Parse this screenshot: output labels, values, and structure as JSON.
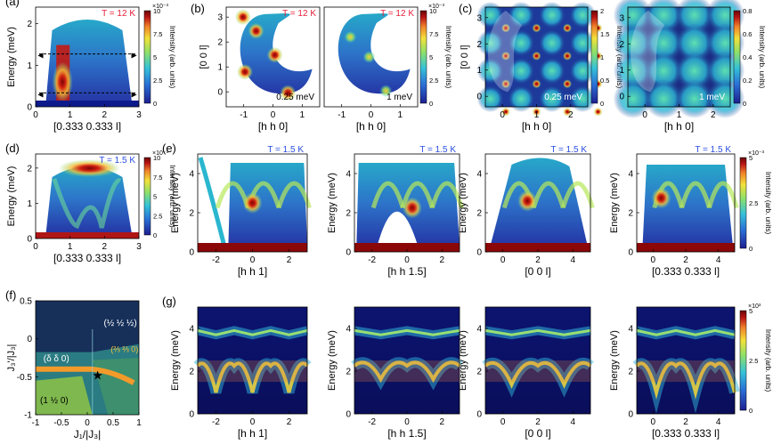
{
  "chart_data": [
    {
      "id": "a",
      "type": "heatmap",
      "panel_label": "(a)",
      "temperature": "T = 12 K",
      "xlabel": "[0.333 0.333 l]",
      "ylabel": "Energy (meV)",
      "xlim": [
        0,
        3
      ],
      "ylim": [
        0,
        2.4
      ],
      "xticks": [
        "0",
        "1",
        "2",
        "3"
      ],
      "yticks": [
        "0",
        "1",
        "2"
      ],
      "colorbar": {
        "label": "Intensity (arb. units)",
        "exponent": "×10⁻³",
        "ticks": [
          "0",
          "2.5",
          "5",
          "7.5",
          "10"
        ],
        "range": [
          0,
          10
        ]
      }
    },
    {
      "id": "b1",
      "type": "heatmap",
      "panel_label": "(b)",
      "temperature": "T = 12 K",
      "energy": "0.25 meV",
      "xlabel": "[h h 0]",
      "ylabel": "[0 0 l]",
      "xlim": [
        -1.6,
        1.6
      ],
      "ylim": [
        -0.6,
        3.4
      ],
      "xticks": [
        "-1",
        "0",
        "1"
      ],
      "yticks": [
        "0",
        "1",
        "2",
        "3"
      ]
    },
    {
      "id": "b2",
      "type": "heatmap",
      "temperature": "T = 12 K",
      "energy": "1 meV",
      "xlabel": "[h h 0]",
      "xticks": [
        "-1",
        "0",
        "1"
      ],
      "colorbar": {
        "label": "Intensity (arb. units)",
        "exponent": "×10⁻³",
        "ticks": [
          "0",
          "2.5",
          "5",
          "7.5",
          "10"
        ],
        "range": [
          0,
          10
        ]
      }
    },
    {
      "id": "c1",
      "type": "heatmap",
      "panel_label": "(c)",
      "energy": "0.25 meV",
      "xlabel": "[h h 0]",
      "ylabel": "[0 0 l]",
      "xticks": [
        "0",
        "1",
        "2"
      ],
      "yticks": [
        "0",
        "1",
        "2",
        "3"
      ],
      "colorbar": {
        "label": "Intensity (arb. units)",
        "ticks": [
          "0",
          "0.5",
          "1",
          "1.5",
          "2"
        ],
        "range": [
          0,
          2
        ]
      }
    },
    {
      "id": "c2",
      "type": "heatmap",
      "energy": "1 meV",
      "xlabel": "[h h 0]",
      "xticks": [
        "0",
        "1",
        "2"
      ],
      "yticks": [
        "0",
        "1",
        "2",
        "3"
      ],
      "colorbar": {
        "label": "Intensity (arb. units)",
        "ticks": [
          "0",
          "0.2",
          "0.4",
          "0.6",
          "0.8"
        ],
        "range": [
          0,
          0.8
        ]
      }
    },
    {
      "id": "d",
      "type": "heatmap",
      "panel_label": "(d)",
      "temperature": "T = 1.5 K",
      "xlabel": "[0.333 0.333 l]",
      "ylabel": "Energy (meV)",
      "xlim": [
        0,
        3
      ],
      "ylim": [
        0,
        2.4
      ],
      "xticks": [
        "0",
        "1",
        "2",
        "3"
      ],
      "yticks": [
        "0",
        "1",
        "2"
      ],
      "colorbar": {
        "label": "Intensity (arb. units)",
        "exponent": "×10⁻³",
        "ticks": [
          "0",
          "2.5",
          "5",
          "7.5",
          "10"
        ],
        "range": [
          0,
          10
        ]
      }
    },
    {
      "id": "e1",
      "type": "heatmap",
      "panel_label": "(e)",
      "temperature": "T = 1.5 K",
      "xlabel": "[h h 1]",
      "ylabel": "Energy (meV)",
      "xlim": [
        -3,
        3
      ],
      "ylim": [
        0,
        5
      ],
      "xticks": [
        "-2",
        "0",
        "2"
      ],
      "yticks": [
        "0",
        "2",
        "4"
      ]
    },
    {
      "id": "e2",
      "type": "heatmap",
      "temperature": "T = 1.5 K",
      "xlabel": "[h h 1.5]",
      "ylabel": "Energy (meV)",
      "xlim": [
        -3,
        3
      ],
      "ylim": [
        0,
        5
      ],
      "xticks": [
        "-2",
        "0",
        "2"
      ],
      "yticks": [
        "0",
        "2",
        "4"
      ]
    },
    {
      "id": "e3",
      "type": "heatmap",
      "temperature": "T = 1.5 K",
      "xlabel": "[0 0 l]",
      "ylabel": "Energy (meV)",
      "xlim": [
        -1,
        5
      ],
      "ylim": [
        0,
        5
      ],
      "xticks": [
        "0",
        "2",
        "4"
      ],
      "yticks": [
        "0",
        "2",
        "4"
      ]
    },
    {
      "id": "e4",
      "type": "heatmap",
      "temperature": "T = 1.5 K",
      "xlabel": "[0.333 0.333 l]",
      "ylabel": "Energy (meV)",
      "xlim": [
        -1,
        5
      ],
      "ylim": [
        0,
        5
      ],
      "xticks": [
        "0",
        "2",
        "4"
      ],
      "yticks": [
        "0",
        "2",
        "4"
      ],
      "colorbar": {
        "label": "Intensity (arb. units)",
        "exponent": "×10⁻³",
        "ticks": [
          "0",
          "2.5",
          "5"
        ],
        "range": [
          0,
          5
        ]
      }
    },
    {
      "id": "f",
      "type": "phase_diagram",
      "panel_label": "(f)",
      "xlabel": "J₁/|J₃|",
      "ylabel": "J₃'/|J₃|",
      "xlim": [
        -1,
        1
      ],
      "ylim": [
        -1,
        0.5
      ],
      "xticks": [
        "-1",
        "-0.5",
        "0",
        "0.5",
        "1"
      ],
      "yticks": [
        "-1",
        "-0.5",
        "0",
        "0.5"
      ],
      "regions": [
        {
          "label": "(½ ½ ½)",
          "color": "#17305a"
        },
        {
          "label": "(δ δ 0)",
          "color": "#2a7b82"
        },
        {
          "label": "(⅔ ⅔ 0)",
          "color": "#3d8f6d"
        },
        {
          "label": "(1 ½ 0)",
          "color": "#7fb84e"
        }
      ],
      "marker": {
        "j1": 0.2,
        "j3p": -0.48,
        "symbol": "★"
      }
    },
    {
      "id": "g1",
      "type": "heatmap",
      "panel_label": "(g)",
      "xlabel": "[h h 1]",
      "ylabel": "Energy (meV)",
      "xlim": [
        -3,
        3
      ],
      "ylim": [
        0,
        5
      ],
      "xticks": [
        "-2",
        "0",
        "2"
      ],
      "yticks": [
        "0",
        "2",
        "4"
      ]
    },
    {
      "id": "g2",
      "type": "heatmap",
      "xlabel": "[h h 1.5]",
      "ylabel": "Energy (meV)",
      "xlim": [
        -3,
        3
      ],
      "ylim": [
        0,
        5
      ],
      "xticks": [
        "-2",
        "0",
        "2"
      ],
      "yticks": [
        "0",
        "2",
        "4"
      ]
    },
    {
      "id": "g3",
      "type": "heatmap",
      "xlabel": "[0 0 l]",
      "ylabel": "Energy (meV)",
      "xlim": [
        -1,
        5
      ],
      "ylim": [
        0,
        5
      ],
      "xticks": [
        "0",
        "2",
        "4"
      ],
      "yticks": [
        "0",
        "2",
        "4"
      ]
    },
    {
      "id": "g4",
      "type": "heatmap",
      "xlabel": "[0.333 0.333 l]",
      "ylabel": "Energy (meV)",
      "xlim": [
        -1,
        5
      ],
      "ylim": [
        0,
        5
      ],
      "xticks": [
        "0",
        "2",
        "4"
      ],
      "yticks": [
        "0",
        "2",
        "4"
      ],
      "colorbar": {
        "label": "Intensity (arb. units)",
        "exponent": "×10³",
        "ticks": [
          "0",
          "2.5",
          "5"
        ],
        "range": [
          0,
          5
        ]
      }
    }
  ],
  "colors": {
    "temp_12K": "#e8203a",
    "temp_1_5K": "#2b4ee0",
    "colormap": [
      "#1d1f8f",
      "#2a6fd6",
      "#35c2d8",
      "#8ee06a",
      "#f2e13a",
      "#f0812a",
      "#b81414",
      "#6a0606"
    ]
  }
}
